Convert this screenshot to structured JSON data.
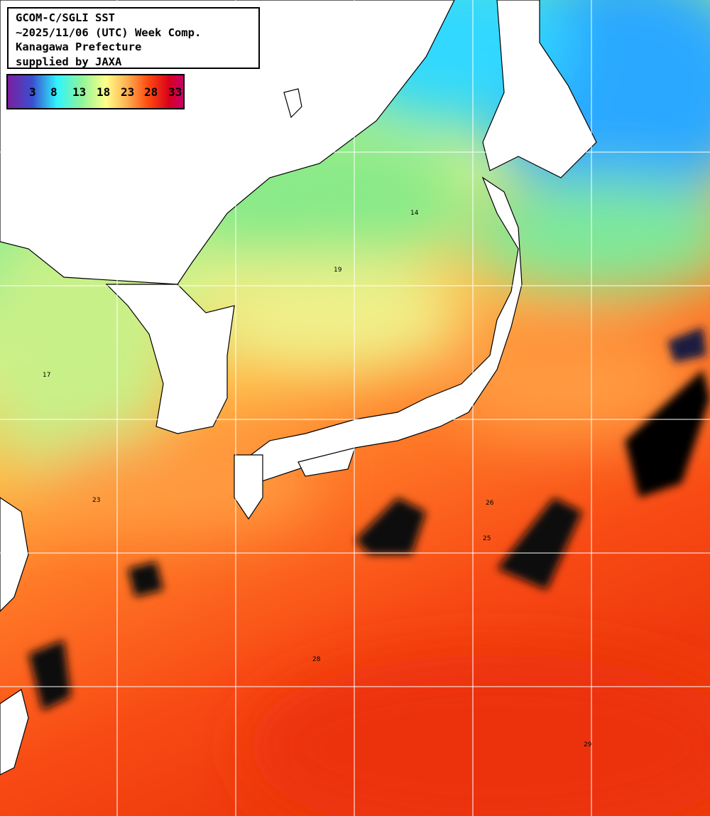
{
  "info": {
    "line1": "GCOM-C/SGLI SST",
    "line2": "~2025/11/06 (UTC) Week Comp.",
    "line3": "Kanagawa Prefecture",
    "line4": "supplied by JAXA"
  },
  "colorbar": {
    "ticks": [
      "3",
      "8",
      "13",
      "18",
      "23",
      "28",
      "33"
    ],
    "colors": [
      "#7a1fa0",
      "#3a4fd0",
      "#2ff4ff",
      "#8ef59a",
      "#ffff88",
      "#ffb050",
      "#ff4a10",
      "#d8001c",
      "#c8006a"
    ]
  },
  "contour_labels": [
    "14",
    "17",
    "19",
    "23",
    "25",
    "26",
    "28",
    "29"
  ]
}
